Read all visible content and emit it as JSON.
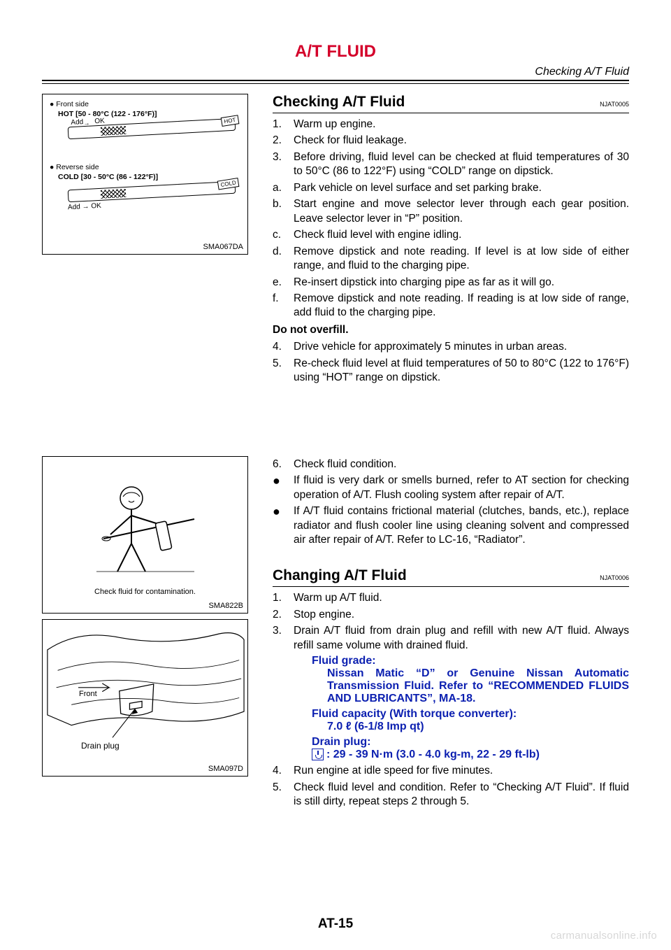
{
  "header": {
    "title": "A/T FLUID",
    "right_label": "Checking A/T Fluid",
    "title_color": "#d4002a"
  },
  "figures": {
    "fig1": {
      "code": "SMA067DA",
      "front_bullet": "●  Front side",
      "front_line": "HOT [50 - 80°C (122 - 176°F)]",
      "rev_bullet": "●  Reverse side",
      "rev_line": "COLD [30 - 50°C (86 - 122°F)]",
      "ok": "OK",
      "add": "Add",
      "hot_tag": "HOT",
      "cold_tag": "COLD"
    },
    "fig2": {
      "code": "SMA822B",
      "caption": "Check fluid for contamination."
    },
    "fig3": {
      "code": "SMA097D",
      "front_label": "Front",
      "drain_label": "Drain plug"
    }
  },
  "section1": {
    "title": "Checking A/T Fluid",
    "code": "NJAT0005",
    "steps123": [
      {
        "n": "1.",
        "t": "Warm up engine."
      },
      {
        "n": "2.",
        "t": "Check for fluid leakage."
      },
      {
        "n": "3.",
        "t": "Before driving, fluid level can be checked at fluid temperatures of 30 to 50°C (86 to 122°F) using “COLD” range on dipstick."
      }
    ],
    "stepsabc": [
      {
        "n": "a.",
        "t": "Park vehicle on level surface and set parking brake."
      },
      {
        "n": "b.",
        "t": "Start engine and move selector lever through each gear position. Leave selector lever in “P” position."
      },
      {
        "n": "c.",
        "t": "Check fluid level with engine idling."
      },
      {
        "n": "d.",
        "t": "Remove dipstick and note reading. If level is at low side of either range, and fluid to the charging pipe."
      },
      {
        "n": "e.",
        "t": "Re-insert dipstick into charging pipe as far as it will go."
      },
      {
        "n": "f.",
        "t": "Remove dipstick and note reading. If reading is at low side of range, add fluid to the charging pipe."
      }
    ],
    "overfill": "Do not overfill.",
    "steps45": [
      {
        "n": "4.",
        "t": "Drive vehicle for approximately 5 minutes in urban areas."
      },
      {
        "n": "5.",
        "t": "Re-check fluid level at fluid temperatures of 50 to 80°C (122 to 176°F) using “HOT” range on dipstick."
      }
    ],
    "step6": {
      "n": "6.",
      "t": "Check fluid condition."
    },
    "bullets": [
      "If fluid is very dark or smells burned, refer to AT section for checking operation of A/T. Flush cooling system after repair of A/T.",
      "If A/T fluid contains frictional material (clutches, bands, etc.), replace radiator and flush cooler line using cleaning solvent and compressed air after repair of A/T. Refer to LC-16, “Radiator”."
    ]
  },
  "section2": {
    "title": "Changing A/T Fluid",
    "code": "NJAT0006",
    "steps": [
      {
        "n": "1.",
        "t": "Warm up A/T fluid."
      },
      {
        "n": "2.",
        "t": "Stop engine."
      },
      {
        "n": "3.",
        "t": "Drain A/T fluid from drain plug and refill with new A/T fluid. Always refill same volume with drained fluid."
      }
    ],
    "fluid_grade_label": "Fluid grade:",
    "fluid_grade_value": "Nissan Matic “D” or Genuine Nissan Automatic Transmission Fluid. Refer to “RECOMMENDED FLUIDS AND LUBRICANTS”, MA-18.",
    "fluid_cap_label": "Fluid capacity (With torque converter):",
    "fluid_cap_value": "7.0 ℓ (6-1/8 Imp qt)",
    "drain_plug_label": "Drain plug:",
    "drain_plug_value": ": 29 - 39 N·m (3.0 - 4.0 kg-m, 22 - 29 ft-lb)",
    "steps45": [
      {
        "n": "4.",
        "t": "Run engine at idle speed for five minutes."
      },
      {
        "n": "5.",
        "t": "Check fluid level and condition. Refer to “Checking A/T Fluid”. If fluid is still dirty, repeat steps 2 through 5."
      }
    ]
  },
  "footer": {
    "page": "AT-15"
  },
  "watermark": "carmanualsonline.info",
  "colors": {
    "accent": "#d4002a",
    "link_blue": "#0b1fb0",
    "text": "#000000",
    "bg": "#ffffff"
  }
}
